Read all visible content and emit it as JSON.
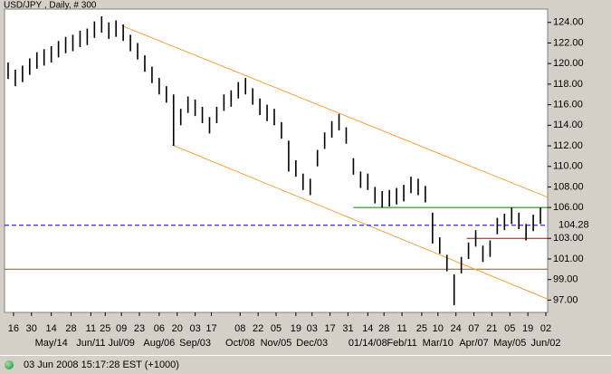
{
  "chart_data": {
    "type": "range-bar",
    "title": "USD/JPY , Daily, # 300",
    "color": "#000000",
    "x": [
      2,
      6,
      10,
      14,
      18,
      22,
      26,
      30,
      34,
      38,
      42,
      46,
      50,
      54,
      58,
      62,
      66,
      70,
      74,
      78,
      82,
      86,
      90,
      94,
      98,
      102,
      106,
      110,
      114,
      118,
      122,
      126,
      130,
      134,
      138,
      142,
      146,
      150,
      154,
      158,
      162,
      166,
      170,
      174,
      178,
      182,
      186,
      190,
      194,
      198,
      202,
      206,
      210,
      214,
      218,
      222,
      226,
      230,
      234,
      238,
      242,
      246,
      250,
      254,
      258,
      262,
      266,
      270,
      274,
      278,
      282,
      286,
      290,
      294,
      298
    ],
    "low": [
      118.5,
      117.8,
      118.2,
      118.9,
      119.5,
      119.8,
      120.1,
      120.6,
      121.0,
      121.2,
      121.6,
      121.8,
      122.5,
      123.0,
      122.4,
      122.6,
      122.2,
      121.2,
      120.4,
      119.2,
      118.1,
      117.0,
      116.2,
      112.0,
      114.0,
      115.2,
      114.9,
      114.2,
      113.2,
      114.2,
      115.4,
      115.8,
      116.6,
      117.0,
      116.0,
      115.0,
      114.4,
      114.0,
      112.7,
      109.5,
      109.0,
      107.7,
      107.2,
      110.0,
      111.7,
      112.8,
      113.5,
      112.2,
      109.2,
      107.9,
      107.7,
      106.4,
      106.0,
      106.1,
      106.3,
      106.6,
      107.4,
      107.2,
      106.5,
      102.5,
      101.5,
      99.8,
      96.5,
      99.6,
      101.0,
      102.2,
      100.7,
      101.2,
      103.4,
      103.8,
      104.4,
      103.9,
      102.8,
      103.7,
      104.4
    ],
    "high": [
      120.1,
      119.4,
      119.8,
      120.5,
      121.1,
      121.4,
      121.7,
      122.2,
      122.6,
      122.8,
      123.2,
      123.4,
      124.1,
      124.6,
      124.0,
      124.2,
      123.8,
      122.8,
      122.0,
      120.8,
      119.7,
      118.6,
      117.8,
      117.0,
      115.6,
      116.8,
      116.5,
      115.8,
      114.8,
      115.8,
      117.0,
      117.4,
      118.2,
      118.6,
      117.6,
      116.6,
      116.0,
      115.6,
      114.3,
      112.5,
      110.6,
      109.3,
      108.8,
      111.6,
      113.3,
      114.4,
      115.1,
      113.8,
      110.8,
      109.5,
      109.3,
      108.0,
      107.6,
      107.7,
      107.9,
      108.2,
      109.0,
      108.8,
      108.1,
      105.5,
      103.1,
      101.4,
      99.5,
      101.2,
      102.6,
      103.8,
      102.3,
      102.8,
      105.0,
      105.4,
      106.0,
      105.5,
      104.4,
      105.3,
      106.0
    ],
    "xlim": [
      0,
      302
    ],
    "ylim": [
      95.8,
      125.3
    ],
    "yticks": [
      {
        "value": 124,
        "label": "124.00"
      },
      {
        "value": 122,
        "label": "122.00"
      },
      {
        "value": 120,
        "label": "120.00"
      },
      {
        "value": 118,
        "label": "118.00"
      },
      {
        "value": 116,
        "label": "116.00"
      },
      {
        "value": 114,
        "label": "114.00"
      },
      {
        "value": 112,
        "label": "112.00"
      },
      {
        "value": 110,
        "label": "110.00"
      },
      {
        "value": 108,
        "label": "108.00"
      },
      {
        "value": 106,
        "label": "106.00"
      },
      {
        "value": 103,
        "label": "103.00"
      },
      {
        "value": 101,
        "label": "101.00"
      },
      {
        "value": 99,
        "label": "99.00"
      },
      {
        "value": 97,
        "label": "97.00"
      }
    ],
    "xticks": [
      {
        "value": 5,
        "label": "16"
      },
      {
        "value": 15,
        "label": "30"
      },
      {
        "value": 26,
        "label": "14"
      },
      {
        "value": 37,
        "label": "28"
      },
      {
        "value": 48,
        "label": "11"
      },
      {
        "value": 56,
        "label": "25"
      },
      {
        "value": 65,
        "label": "09"
      },
      {
        "value": 75,
        "label": "23"
      },
      {
        "value": 86,
        "label": "06"
      },
      {
        "value": 96,
        "label": "20"
      },
      {
        "value": 106,
        "label": "03"
      },
      {
        "value": 115,
        "label": "17"
      },
      {
        "value": 131,
        "label": "08"
      },
      {
        "value": 141,
        "label": "22"
      },
      {
        "value": 151,
        "label": "05"
      },
      {
        "value": 162,
        "label": "19"
      },
      {
        "value": 171,
        "label": "03"
      },
      {
        "value": 181,
        "label": "17"
      },
      {
        "value": 191,
        "label": "31"
      },
      {
        "value": 202,
        "label": "14"
      },
      {
        "value": 211,
        "label": "28"
      },
      {
        "value": 221,
        "label": "11"
      },
      {
        "value": 232,
        "label": "25"
      },
      {
        "value": 241,
        "label": "10"
      },
      {
        "value": 251,
        "label": "24"
      },
      {
        "value": 261,
        "label": "07"
      },
      {
        "value": 271,
        "label": "21"
      },
      {
        "value": 281,
        "label": "05"
      },
      {
        "value": 291,
        "label": "19"
      },
      {
        "value": 301,
        "label": "02"
      }
    ],
    "xticks_major": [
      {
        "value": 26,
        "label": "May/14"
      },
      {
        "value": 48,
        "label": "Jun/11"
      },
      {
        "value": 65,
        "label": "Jul/09"
      },
      {
        "value": 86,
        "label": "Aug/06"
      },
      {
        "value": 106,
        "label": "Sep/03"
      },
      {
        "value": 131,
        "label": "Oct/08"
      },
      {
        "value": 151,
        "label": "Nov/05"
      },
      {
        "value": 171,
        "label": "Dec/03"
      },
      {
        "value": 202,
        "label": "01/14/08"
      },
      {
        "value": 221,
        "label": "Feb/11"
      },
      {
        "value": 241,
        "label": "Mar/10"
      },
      {
        "value": 261,
        "label": "Apr/07"
      },
      {
        "value": 281,
        "label": "May/05"
      },
      {
        "value": 301,
        "label": "Jun/02"
      }
    ],
    "last_price": {
      "value": 104.28,
      "color": "#0000ff"
    },
    "trend_lines": [
      {
        "color": "#f5a040",
        "from": [
          65,
          123.7
        ],
        "to": [
          302,
          107.0
        ]
      },
      {
        "color": "#f5a040",
        "from": [
          93,
          112.1
        ],
        "to": [
          302,
          97.1
        ]
      }
    ],
    "hlines": [
      {
        "value": 106,
        "start": 194,
        "color": "#008000"
      },
      {
        "value": 103,
        "start": 257,
        "color": "#c00000"
      },
      {
        "value": 100,
        "start": 0,
        "color": "#a0522d"
      }
    ]
  },
  "status_bar": {
    "timestamp": "03 Jun 2008 15:17:28 EST (+1000)"
  }
}
